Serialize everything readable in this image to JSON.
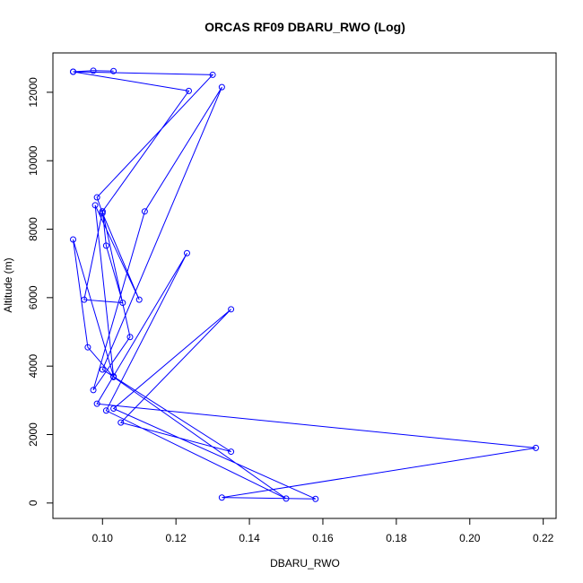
{
  "chart_data": {
    "type": "line",
    "title": "ORCAS RF09 DBARU_RWO (Log)",
    "xlabel": "DBARU_RWO",
    "ylabel": "Altitude (m)",
    "xlim": [
      0.0865,
      0.2235
    ],
    "ylim": [
      -450,
      13150
    ],
    "xticks": [
      0.1,
      0.12,
      0.14,
      0.16,
      0.18,
      0.2,
      0.22
    ],
    "xtick_labels": [
      "0.10",
      "0.12",
      "0.14",
      "0.16",
      "0.18",
      "0.20",
      "0.22"
    ],
    "yticks": [
      0,
      2000,
      4000,
      6000,
      8000,
      10000,
      12000
    ],
    "ytick_labels": [
      "0",
      "2000",
      "4000",
      "6000",
      "8000",
      "10000",
      "12000"
    ],
    "series": [
      {
        "color": "#0000ff",
        "marker": "open-circle",
        "points": [
          {
            "x": 0.103,
            "y": 12620
          },
          {
            "x": 0.0975,
            "y": 12630
          },
          {
            "x": 0.092,
            "y": 12600
          },
          {
            "x": 0.13,
            "y": 12510
          },
          {
            "x": 0.0985,
            "y": 8930
          },
          {
            "x": 0.1,
            "y": 8470
          },
          {
            "x": 0.11,
            "y": 5940
          },
          {
            "x": 0.098,
            "y": 8700
          },
          {
            "x": 0.103,
            "y": 3700
          },
          {
            "x": 0.092,
            "y": 7700
          },
          {
            "x": 0.096,
            "y": 4550
          },
          {
            "x": 0.103,
            "y": 3680
          },
          {
            "x": 0.15,
            "y": 130
          },
          {
            "x": 0.101,
            "y": 2700
          },
          {
            "x": 0.123,
            "y": 7300
          },
          {
            "x": 0.0985,
            "y": 2900
          },
          {
            "x": 0.218,
            "y": 1610
          },
          {
            "x": 0.1325,
            "y": 160
          },
          {
            "x": 0.158,
            "y": 120
          },
          {
            "x": 0.103,
            "y": 2760
          },
          {
            "x": 0.135,
            "y": 5660
          },
          {
            "x": 0.105,
            "y": 2350
          },
          {
            "x": 0.135,
            "y": 1500
          },
          {
            "x": 0.1,
            "y": 3900
          },
          {
            "x": 0.1325,
            "y": 12150
          },
          {
            "x": 0.1115,
            "y": 8520
          },
          {
            "x": 0.0975,
            "y": 3300
          },
          {
            "x": 0.1075,
            "y": 4850
          },
          {
            "x": 0.1,
            "y": 8520
          },
          {
            "x": 0.101,
            "y": 7520
          },
          {
            "x": 0.1055,
            "y": 5850
          },
          {
            "x": 0.095,
            "y": 5940
          },
          {
            "x": 0.1,
            "y": 8520
          },
          {
            "x": 0.1235,
            "y": 12040
          },
          {
            "x": 0.092,
            "y": 12600
          }
        ]
      }
    ]
  }
}
